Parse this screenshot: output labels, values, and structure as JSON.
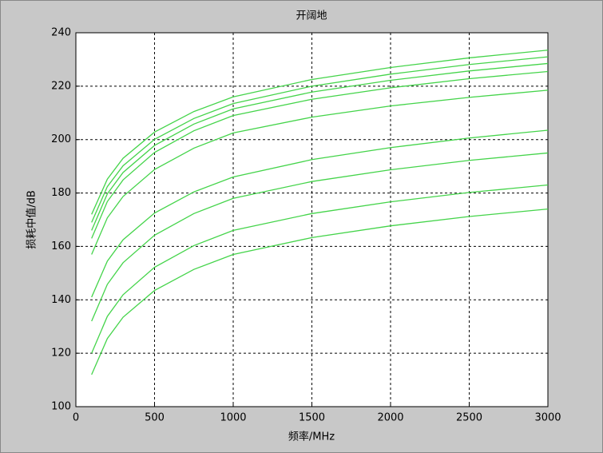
{
  "chart_data": {
    "type": "line",
    "title": "开阔地",
    "xlabel": "频率/MHz",
    "ylabel": "损耗中值/dB",
    "x": [
      100,
      200,
      300,
      500,
      750,
      1000,
      1500,
      2000,
      2500,
      3000
    ],
    "series": [
      {
        "color": "#44d44a",
        "values": [
          172,
          185.2,
          193.0,
          202.8,
          210.5,
          216,
          222.5,
          227.0,
          230.6,
          233.5
        ]
      },
      {
        "color": "#44d44a",
        "values": [
          169,
          182.4,
          190.2,
          200.1,
          207.9,
          213.5,
          220.0,
          224.5,
          228.1,
          231
        ]
      },
      {
        "color": "#44d44a",
        "values": [
          166,
          179.7,
          187.7,
          197.8,
          205.8,
          211.5,
          217.8,
          222.2,
          225.7,
          228.5
        ]
      },
      {
        "color": "#44d44a",
        "values": [
          163,
          176.8,
          184.9,
          195.2,
          203.3,
          209,
          215.1,
          219.4,
          222.8,
          225.5
        ]
      },
      {
        "color": "#44d44a",
        "values": [
          157,
          170.7,
          178.7,
          188.8,
          196.8,
          202.5,
          208.4,
          212.6,
          215.8,
          218.5
        ]
      },
      {
        "color": "#44d44a",
        "values": [
          141,
          154.5,
          162.5,
          172.5,
          180.4,
          186,
          192.5,
          197.0,
          200.6,
          203.5
        ]
      },
      {
        "color": "#44d44a",
        "values": [
          132,
          145.8,
          153.9,
          164.2,
          172.3,
          178,
          184.3,
          188.7,
          192.2,
          195
        ]
      },
      {
        "color": "#44d44a",
        "values": [
          120,
          133.8,
          141.9,
          152.2,
          160.3,
          166,
          172.3,
          176.7,
          180.2,
          183
        ]
      },
      {
        "color": "#44d44a",
        "values": [
          112,
          125.5,
          133.5,
          143.5,
          151.4,
          157,
          163.3,
          167.7,
          171.2,
          174
        ]
      }
    ],
    "xlim": [
      0,
      3000
    ],
    "xticks": [
      0,
      500,
      1000,
      1500,
      2000,
      2500,
      3000
    ],
    "ylim": [
      100,
      240
    ],
    "yticks": [
      100,
      120,
      140,
      160,
      180,
      200,
      220,
      240
    ],
    "grid": true
  }
}
